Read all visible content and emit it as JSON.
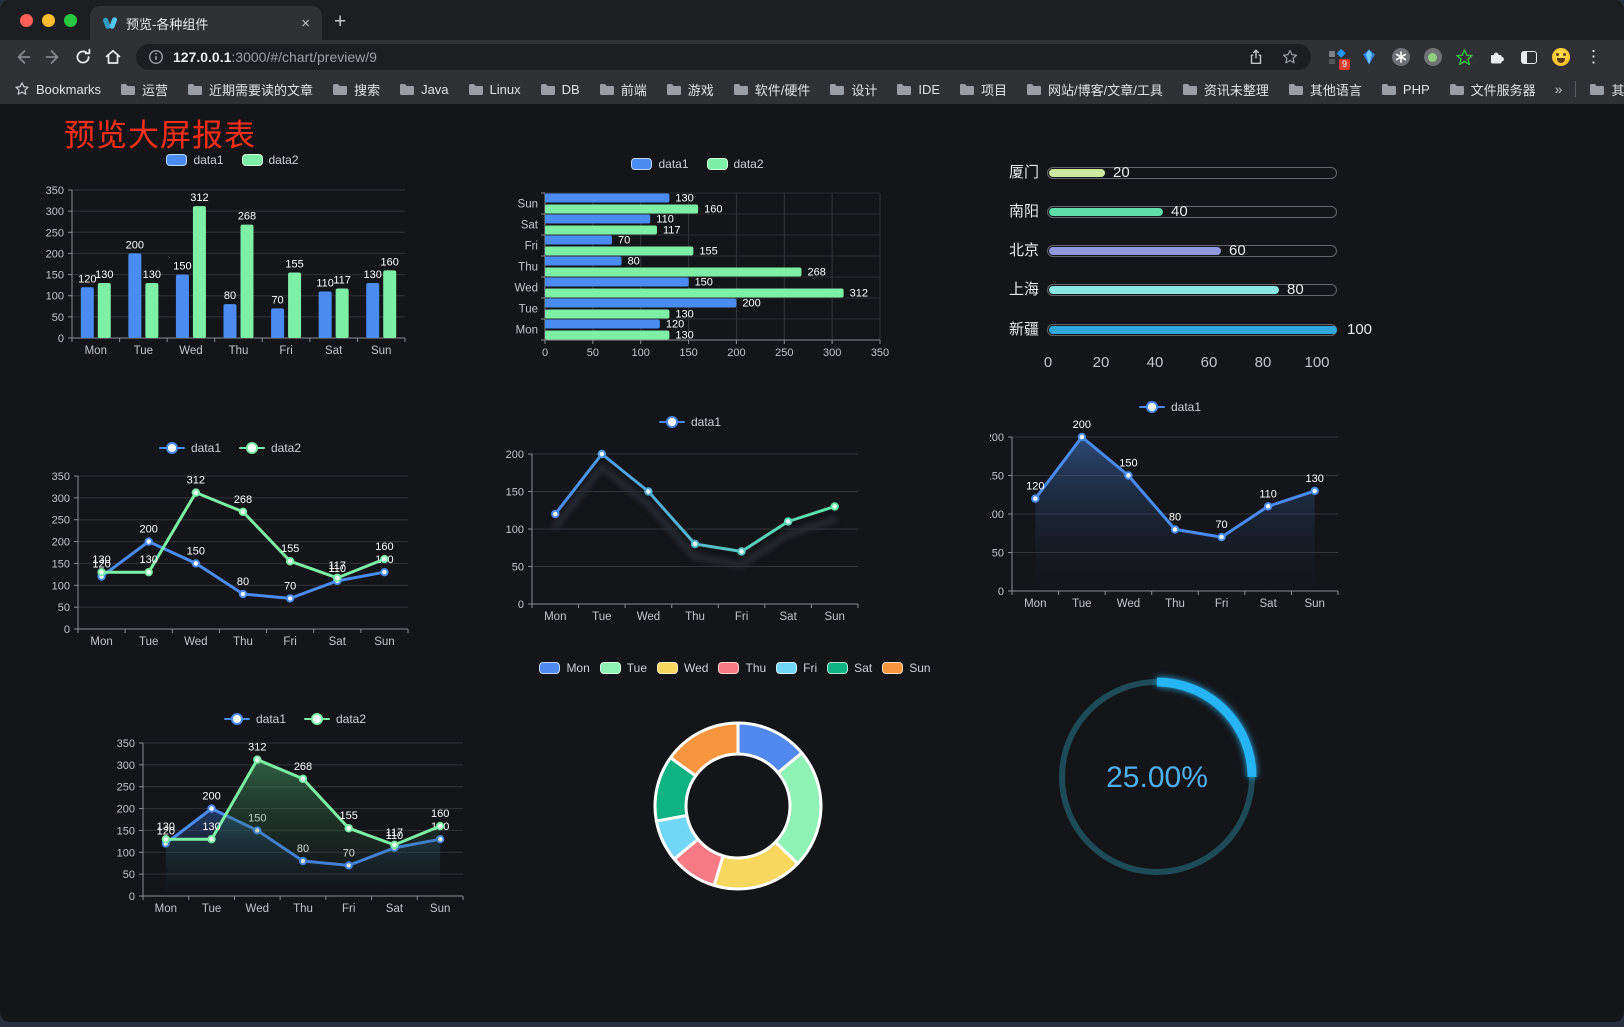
{
  "browser": {
    "tab": {
      "title": "预览-各种组件"
    },
    "glyphs": {
      "new_tab": "+",
      "tab_close": "×",
      "menu": "⋮",
      "overflow_chevron": "»"
    },
    "address": {
      "host": "127.0.0.1",
      "path": ":3000/#/chart/preview/9"
    },
    "extension_badge": "9",
    "bookmarks": {
      "label": "Bookmarks",
      "folders": [
        "运营",
        "近期需要读的文章",
        "搜索",
        "Java",
        "Linux",
        "DB",
        "前端",
        "游戏",
        "软件/硬件",
        "设计",
        "IDE",
        "项目",
        "网站/博客/文章/工具",
        "资讯未整理",
        "其他语言",
        "PHP",
        "文件服务器"
      ],
      "other": "其他书签"
    }
  },
  "page": {
    "title": "预览大屏报表",
    "title_color": "#fb2e17",
    "background": "#141519"
  },
  "chart_data": [
    {
      "id": "chart-grouped-bar",
      "type": "bar",
      "categories": [
        "Mon",
        "Tue",
        "Wed",
        "Thu",
        "Fri",
        "Sat",
        "Sun"
      ],
      "series": [
        {
          "name": "data1",
          "color": "#4a8cf2",
          "values": [
            120,
            200,
            150,
            80,
            70,
            110,
            130
          ]
        },
        {
          "name": "data2",
          "color": "#7df0a6",
          "values": [
            130,
            130,
            312,
            268,
            155,
            117,
            160
          ]
        }
      ],
      "ylim": [
        0,
        350
      ],
      "ytick_step": 50,
      "yticks": [
        0,
        50,
        100,
        150,
        200,
        250,
        300,
        350
      ],
      "value_labels": true,
      "legend_position": "top",
      "grid": true
    },
    {
      "id": "chart-horizontal-bar",
      "type": "bar-horizontal",
      "categories": [
        "Mon",
        "Tue",
        "Wed",
        "Thu",
        "Fri",
        "Sat",
        "Sun"
      ],
      "series": [
        {
          "name": "data1",
          "color": "#4a8cf2",
          "values": [
            120,
            200,
            150,
            80,
            70,
            110,
            130
          ]
        },
        {
          "name": "data2",
          "color": "#7df0a6",
          "values": [
            130,
            130,
            312,
            268,
            155,
            117,
            160
          ]
        }
      ],
      "xlim": [
        0,
        350
      ],
      "xtick_step": 50,
      "xticks": [
        0,
        50,
        100,
        150,
        200,
        250,
        300,
        350
      ],
      "value_labels": true,
      "legend_position": "top",
      "grid": true
    },
    {
      "id": "chart-progress-bars",
      "type": "bar-horizontal-progress",
      "rows": [
        {
          "label": "厦门",
          "value": 20,
          "color": "#cde9a0"
        },
        {
          "label": "南阳",
          "value": 40,
          "color": "#5cdfa8"
        },
        {
          "label": "北京",
          "value": 60,
          "color": "#9298de"
        },
        {
          "label": "上海",
          "value": 80,
          "color": "#8be5e1"
        },
        {
          "label": "新疆",
          "value": 100,
          "color": "#30a8dd"
        }
      ],
      "xlim": [
        0,
        100
      ],
      "xticks": [
        0,
        20,
        40,
        60,
        80,
        100
      ]
    },
    {
      "id": "chart-dual-line",
      "type": "line",
      "categories": [
        "Mon",
        "Tue",
        "Wed",
        "Thu",
        "Fri",
        "Sat",
        "Sun"
      ],
      "series": [
        {
          "name": "data1",
          "color": "#4a8cf2",
          "values": [
            120,
            200,
            150,
            80,
            70,
            110,
            130
          ]
        },
        {
          "name": "data2",
          "color": "#7df0a6",
          "values": [
            130,
            130,
            312,
            268,
            155,
            117,
            160
          ]
        }
      ],
      "ylim": [
        0,
        350
      ],
      "ytick_step": 50,
      "value_labels": true,
      "legend_position": "top",
      "grid": true
    },
    {
      "id": "chart-gradient-line",
      "type": "line",
      "categories": [
        "Mon",
        "Tue",
        "Wed",
        "Thu",
        "Fri",
        "Sat",
        "Sun"
      ],
      "series": [
        {
          "name": "data1",
          "gradient": [
            "#4a8cf2",
            "#5fe8a8"
          ],
          "values": [
            120,
            200,
            150,
            80,
            70,
            110,
            130
          ]
        }
      ],
      "ylim": [
        0,
        200
      ],
      "ytick_step": 50,
      "value_labels": false,
      "shadow": true,
      "legend_position": "top",
      "grid": true
    },
    {
      "id": "chart-area-line",
      "type": "area",
      "categories": [
        "Mon",
        "Tue",
        "Wed",
        "Thu",
        "Fri",
        "Sat",
        "Sun"
      ],
      "series": [
        {
          "name": "data1",
          "color": "#4a8cf2",
          "area": true,
          "area_fade": [
            "rgba(62,110,180,0.60)",
            "rgba(20,30,50,0.03)"
          ],
          "values": [
            120,
            200,
            150,
            80,
            70,
            110,
            130
          ]
        }
      ],
      "ylim": [
        0,
        200
      ],
      "ytick_step": 50,
      "value_labels": true,
      "legend_position": "top",
      "grid": true
    },
    {
      "id": "chart-dual-area-line",
      "type": "area",
      "categories": [
        "Mon",
        "Tue",
        "Wed",
        "Thu",
        "Fri",
        "Sat",
        "Sun"
      ],
      "series": [
        {
          "name": "data1",
          "color": "#4a8cf2",
          "area": true,
          "area_fade": [
            "rgba(45,95,175,0.50)",
            "rgba(20,30,50,0.03)"
          ],
          "values": [
            120,
            200,
            150,
            80,
            70,
            110,
            130
          ]
        },
        {
          "name": "data2",
          "color": "#7df0a6",
          "area": true,
          "area_fade": [
            "rgba(70,160,100,0.55)",
            "rgba(20,40,30,0.03)"
          ],
          "values": [
            130,
            130,
            312,
            268,
            155,
            117,
            160
          ]
        }
      ],
      "ylim": [
        0,
        350
      ],
      "ytick_step": 50,
      "value_labels": true,
      "legend_position": "top",
      "grid": true
    },
    {
      "id": "chart-donut",
      "type": "pie",
      "categories": [
        "Mon",
        "Tue",
        "Wed",
        "Thu",
        "Fri",
        "Sat",
        "Sun"
      ],
      "values": [
        120,
        200,
        150,
        80,
        70,
        110,
        130
      ],
      "colors": [
        "#5289ee",
        "#8ef2b4",
        "#f7d75e",
        "#f87a84",
        "#72d6f6",
        "#0eb381",
        "#f8953f"
      ],
      "donut": true,
      "legend_position": "top"
    },
    {
      "id": "chart-gauge",
      "type": "gauge",
      "percent": 25,
      "label": "25.00%",
      "color": "#28b4f4",
      "track_color": "#1d4b58",
      "label_color": "#4fb0f0"
    }
  ]
}
